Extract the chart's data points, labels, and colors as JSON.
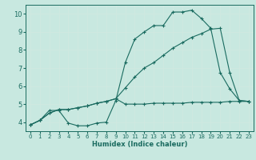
{
  "xlabel": "Humidex (Indice chaleur)",
  "bg_color": "#c8e8e0",
  "grid_color": "#e8f8f8",
  "line_color": "#1a6b60",
  "spine_color": "#888888",
  "xlim": [
    -0.5,
    23.5
  ],
  "ylim": [
    3.5,
    10.5
  ],
  "xticks": [
    0,
    1,
    2,
    3,
    4,
    5,
    6,
    7,
    8,
    9,
    10,
    11,
    12,
    13,
    14,
    15,
    16,
    17,
    18,
    19,
    20,
    21,
    22,
    23
  ],
  "yticks": [
    4,
    5,
    6,
    7,
    8,
    9,
    10
  ],
  "line1_x": [
    0,
    1,
    2,
    3,
    4,
    5,
    6,
    7,
    8,
    9,
    10,
    11,
    12,
    13,
    14,
    15,
    16,
    17,
    18,
    19,
    20,
    21,
    22,
    23
  ],
  "line1_y": [
    3.85,
    4.1,
    4.65,
    4.65,
    3.95,
    3.8,
    3.8,
    3.95,
    4.0,
    5.2,
    7.3,
    8.6,
    9.0,
    9.35,
    9.35,
    10.1,
    10.1,
    10.2,
    9.75,
    9.2,
    6.75,
    5.85,
    5.2,
    5.15
  ],
  "line2_x": [
    0,
    1,
    2,
    3,
    4,
    5,
    6,
    7,
    8,
    9,
    10,
    11,
    12,
    13,
    14,
    15,
    16,
    17,
    18,
    19,
    20,
    21,
    22,
    23
  ],
  "line2_y": [
    3.85,
    4.1,
    4.5,
    4.7,
    4.7,
    4.8,
    4.9,
    5.05,
    5.15,
    5.3,
    5.9,
    6.5,
    7.0,
    7.3,
    7.7,
    8.1,
    8.4,
    8.7,
    8.9,
    9.15,
    9.2,
    6.75,
    5.2,
    5.15
  ],
  "line3_x": [
    0,
    1,
    2,
    3,
    4,
    5,
    6,
    7,
    8,
    9,
    10,
    11,
    12,
    13,
    14,
    15,
    16,
    17,
    18,
    19,
    20,
    21,
    22,
    23
  ],
  "line3_y": [
    3.85,
    4.1,
    4.5,
    4.7,
    4.7,
    4.8,
    4.9,
    5.05,
    5.15,
    5.3,
    5.0,
    5.0,
    5.0,
    5.05,
    5.05,
    5.05,
    5.05,
    5.1,
    5.1,
    5.1,
    5.1,
    5.15,
    5.15,
    5.15
  ]
}
